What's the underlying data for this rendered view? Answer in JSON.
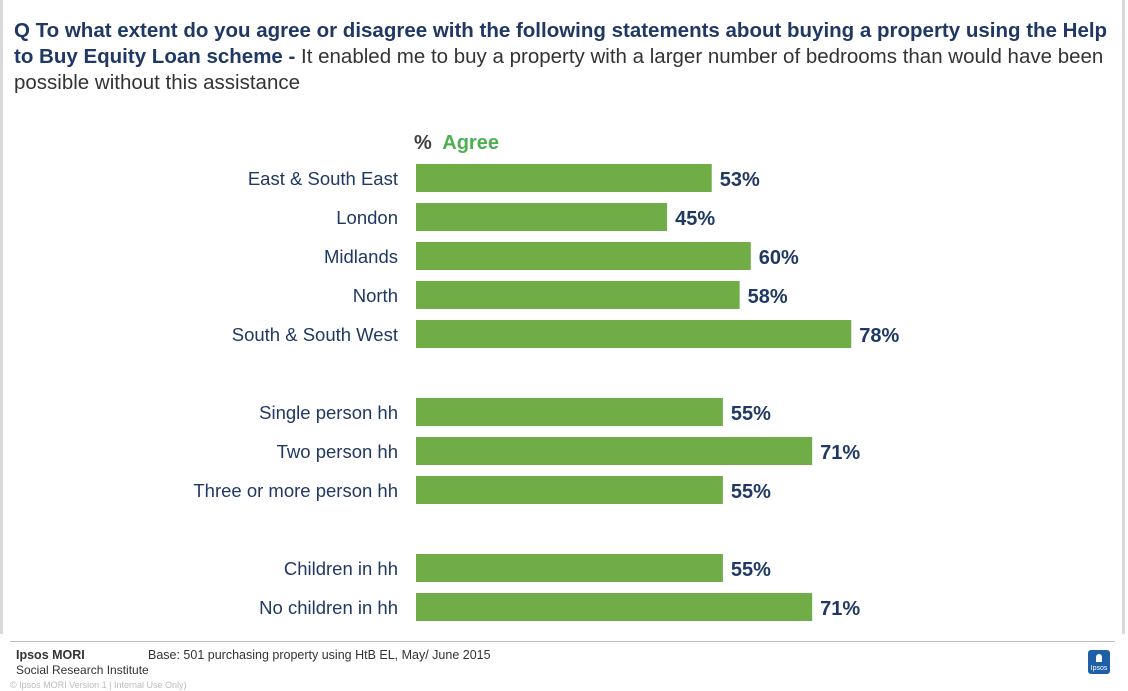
{
  "question": {
    "prefix": "Q  To what extent do you agree or disagree with the following statements about buying a property using the Help to Buy Equity Loan scheme - ",
    "statement": "It enabled me to buy a property with a larger number of bedrooms than would have been possible without this assistance"
  },
  "chart_data": {
    "type": "bar",
    "orientation": "horizontal",
    "axis_title_prefix": "%",
    "axis_title": "Agree",
    "bar_color": "#70ad47",
    "label_color": "#1f3864",
    "groups": [
      {
        "categories": [
          "East & South East",
          "London",
          "Midlands",
          "North",
          "South & South West"
        ],
        "values": [
          53,
          45,
          60,
          58,
          78
        ],
        "labels": [
          "53%",
          "45%",
          "60%",
          "58%",
          "78%"
        ]
      },
      {
        "categories": [
          "Single person hh",
          "Two person hh",
          "Three or more person hh"
        ],
        "values": [
          55,
          71,
          55
        ],
        "labels": [
          "55%",
          "71%",
          "55%"
        ]
      },
      {
        "categories": [
          "Children in hh",
          "No children in hh"
        ],
        "values": [
          55,
          71
        ],
        "labels": [
          "55%",
          "71%"
        ]
      }
    ],
    "xlim": [
      0,
      100
    ]
  },
  "footer": {
    "brand": "Ipsos MORI",
    "brand_sub": "Social Research Institute",
    "base": "Base: 501 purchasing property using HtB EL, May/ June  2015",
    "copyright": "© Ipsos MORI    Version 1 | Internal Use Only)",
    "logo_text": "Ipsos"
  }
}
